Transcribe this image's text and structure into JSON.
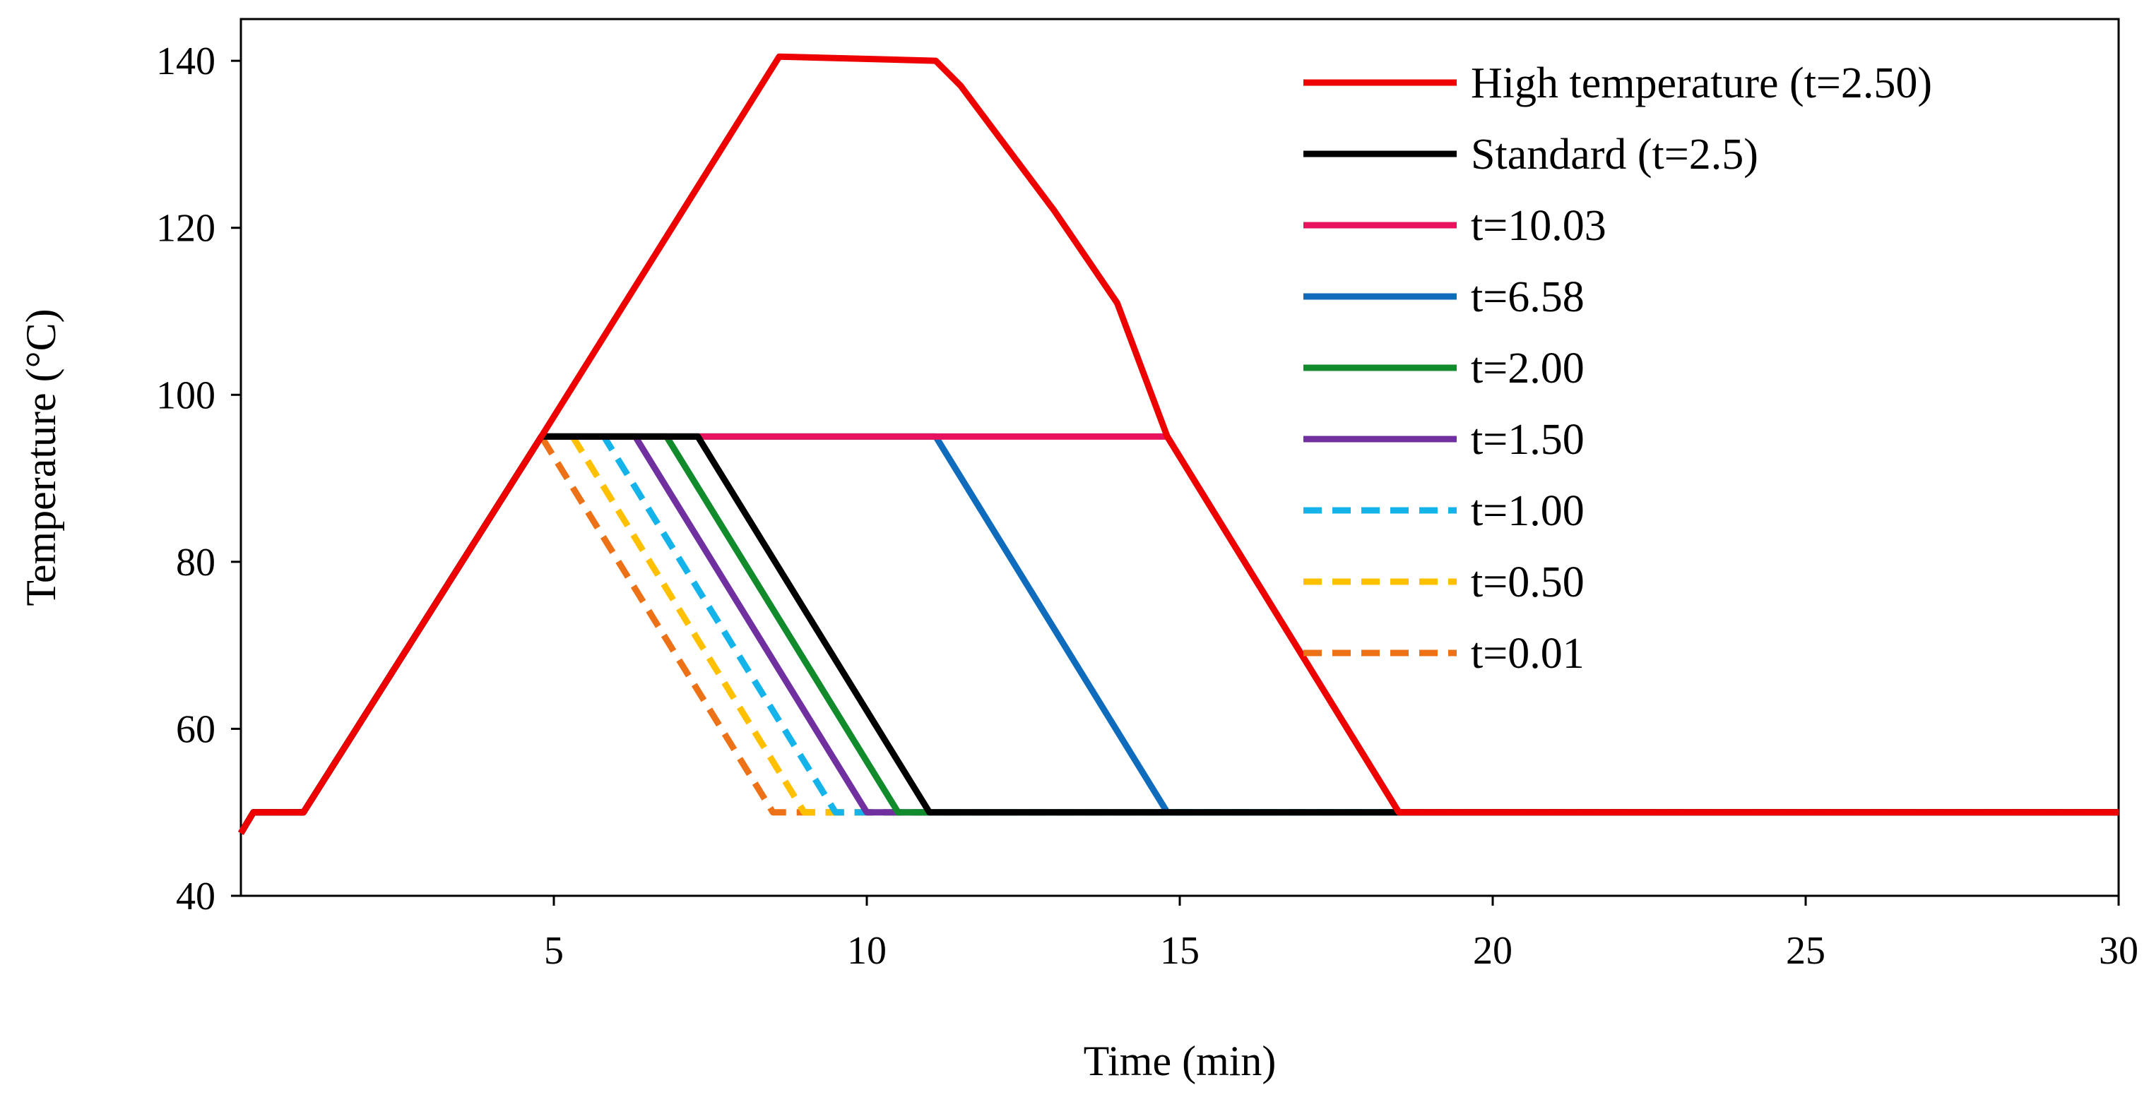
{
  "chart_data": {
    "type": "line",
    "title": "",
    "xlabel": "Time (min)",
    "ylabel": "Temperature (°C)",
    "xlim": [
      0,
      30
    ],
    "ylim": [
      40,
      145
    ],
    "xticks": [
      5,
      10,
      15,
      20,
      25,
      30
    ],
    "yticks": [
      40,
      60,
      80,
      100,
      120,
      140
    ],
    "grid": false,
    "legend_position": "top-right",
    "series": [
      {
        "name": "High temperature (t=2.50)",
        "color": "#ee0000",
        "dashed": false,
        "points": [
          [
            0,
            47.5
          ],
          [
            0.2,
            50
          ],
          [
            1.0,
            50
          ],
          [
            4.8,
            95
          ],
          [
            8.6,
            140.5
          ],
          [
            11.1,
            140
          ],
          [
            11.5,
            137
          ],
          [
            12,
            132
          ],
          [
            13,
            122
          ],
          [
            14,
            111
          ],
          [
            14.8,
            95
          ],
          [
            18.5,
            50
          ],
          [
            30,
            50
          ]
        ]
      },
      {
        "name": "Standard (t=2.5)",
        "color": "#000000",
        "dashed": false,
        "points": [
          [
            0,
            47.5
          ],
          [
            0.2,
            50
          ],
          [
            1.0,
            50
          ],
          [
            4.8,
            95
          ],
          [
            7.3,
            95
          ],
          [
            11.0,
            50
          ],
          [
            30,
            50
          ]
        ]
      },
      {
        "name": "t=10.03",
        "color": "#e8135f",
        "dashed": false,
        "points": [
          [
            0,
            47.5
          ],
          [
            0.2,
            50
          ],
          [
            1.0,
            50
          ],
          [
            4.8,
            95
          ],
          [
            14.8,
            95
          ],
          [
            18.5,
            50
          ],
          [
            30,
            50
          ]
        ]
      },
      {
        "name": "t=6.58",
        "color": "#0f6cbd",
        "dashed": false,
        "points": [
          [
            0,
            47.5
          ],
          [
            0.2,
            50
          ],
          [
            1.0,
            50
          ],
          [
            4.8,
            95
          ],
          [
            11.1,
            95
          ],
          [
            14.8,
            50
          ],
          [
            30,
            50
          ]
        ]
      },
      {
        "name": "t=2.00",
        "color": "#118b2b",
        "dashed": false,
        "points": [
          [
            0,
            47.5
          ],
          [
            0.2,
            50
          ],
          [
            1.0,
            50
          ],
          [
            4.8,
            95
          ],
          [
            6.8,
            95
          ],
          [
            10.5,
            50
          ],
          [
            30,
            50
          ]
        ]
      },
      {
        "name": "t=1.50",
        "color": "#7030a0",
        "dashed": false,
        "points": [
          [
            0,
            47.5
          ],
          [
            0.2,
            50
          ],
          [
            1.0,
            50
          ],
          [
            4.8,
            95
          ],
          [
            6.3,
            95
          ],
          [
            10.0,
            50
          ],
          [
            30,
            50
          ]
        ]
      },
      {
        "name": "t=1.00",
        "color": "#14b4ea",
        "dashed": true,
        "points": [
          [
            0,
            47.5
          ],
          [
            0.2,
            50
          ],
          [
            1.0,
            50
          ],
          [
            4.8,
            95
          ],
          [
            5.8,
            95
          ],
          [
            9.5,
            50
          ],
          [
            30,
            50
          ]
        ]
      },
      {
        "name": "t=0.50",
        "color": "#ffc000",
        "dashed": true,
        "points": [
          [
            0,
            47.5
          ],
          [
            0.2,
            50
          ],
          [
            1.0,
            50
          ],
          [
            4.8,
            95
          ],
          [
            5.3,
            95
          ],
          [
            9.0,
            50
          ],
          [
            30,
            50
          ]
        ]
      },
      {
        "name": "t=0.01",
        "color": "#ed7117",
        "dashed": true,
        "points": [
          [
            0,
            47.5
          ],
          [
            0.2,
            50
          ],
          [
            1.0,
            50
          ],
          [
            4.8,
            95
          ],
          [
            4.8,
            95
          ],
          [
            8.5,
            50
          ],
          [
            30,
            50
          ]
        ]
      }
    ]
  }
}
